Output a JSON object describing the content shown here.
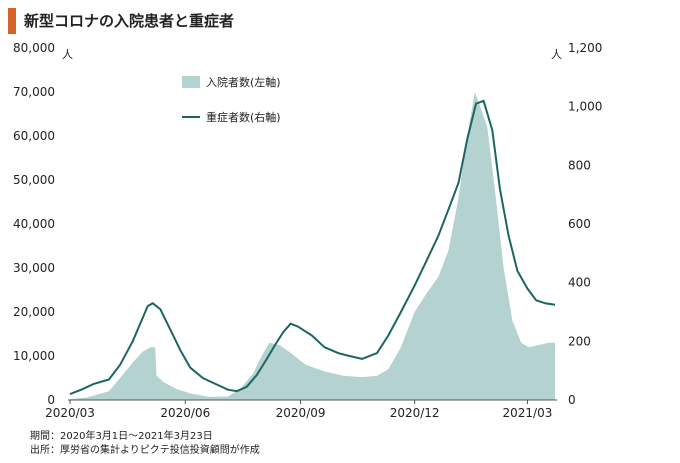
{
  "header": {
    "title": "新型コロナの入院患者と重症者"
  },
  "footer": {
    "period": "期間：2020年3月1日～2021年3月23日",
    "source": "出所：厚労省の集計よりピクテ投信投資顧問が作成"
  },
  "chart_data": {
    "type": "area",
    "title": "新型コロナの入院患者と重症者",
    "left_unit": "人",
    "right_unit": "人",
    "left_axis": {
      "ylim": [
        0,
        80000
      ],
      "ticks": [
        0,
        10000,
        20000,
        30000,
        40000,
        50000,
        60000,
        70000,
        80000
      ],
      "tick_labels": [
        "0",
        "10,000",
        "20,000",
        "30,000",
        "40,000",
        "50,000",
        "60,000",
        "70,000",
        "80,000"
      ]
    },
    "right_axis": {
      "ylim": [
        0,
        1200
      ],
      "ticks": [
        0,
        200,
        400,
        600,
        800,
        1000,
        1200
      ],
      "tick_labels": [
        "0",
        "200",
        "400",
        "600",
        "800",
        "1,000",
        "1,200"
      ]
    },
    "x_axis": {
      "range": [
        "2020-03-01",
        "2021-03-23"
      ],
      "ticks": [
        "2020-03-01",
        "2020-06-01",
        "2020-09-01",
        "2020-12-01",
        "2021-03-01"
      ],
      "tick_labels": [
        "2020/03",
        "2020/06",
        "2020/09",
        "2020/12",
        "2021/03"
      ]
    },
    "legend_position": "top-center",
    "grid": false,
    "series": [
      {
        "name": "入院者数(左軸)",
        "kind": "area",
        "axis": "left",
        "color": "#b3d2d0",
        "points": [
          [
            "2020-03-01",
            200
          ],
          [
            "2020-03-15",
            600
          ],
          [
            "2020-04-01",
            2000
          ],
          [
            "2020-04-10",
            5000
          ],
          [
            "2020-04-20",
            8500
          ],
          [
            "2020-04-28",
            11000
          ],
          [
            "2020-05-04",
            12000
          ],
          [
            "2020-05-08",
            12000
          ],
          [
            "2020-05-09",
            5500
          ],
          [
            "2020-05-15",
            4000
          ],
          [
            "2020-05-25",
            2500
          ],
          [
            "2020-06-05",
            1500
          ],
          [
            "2020-06-20",
            700
          ],
          [
            "2020-07-05",
            800
          ],
          [
            "2020-07-15",
            2500
          ],
          [
            "2020-07-25",
            6000
          ],
          [
            "2020-08-01",
            10000
          ],
          [
            "2020-08-07",
            13000
          ],
          [
            "2020-08-15",
            12500
          ],
          [
            "2020-08-25",
            10500
          ],
          [
            "2020-09-05",
            8000
          ],
          [
            "2020-09-20",
            6500
          ],
          [
            "2020-10-05",
            5500
          ],
          [
            "2020-10-20",
            5200
          ],
          [
            "2020-11-01",
            5500
          ],
          [
            "2020-11-10",
            7000
          ],
          [
            "2020-11-20",
            12000
          ],
          [
            "2020-12-01",
            20000
          ],
          [
            "2020-12-10",
            24000
          ],
          [
            "2020-12-20",
            28000
          ],
          [
            "2020-12-28",
            34000
          ],
          [
            "2021-01-05",
            46000
          ],
          [
            "2021-01-12",
            60000
          ],
          [
            "2021-01-18",
            70000
          ],
          [
            "2021-01-22",
            67000
          ],
          [
            "2021-01-28",
            62000
          ],
          [
            "2021-02-03",
            48000
          ],
          [
            "2021-02-10",
            30000
          ],
          [
            "2021-02-17",
            18000
          ],
          [
            "2021-02-24",
            13000
          ],
          [
            "2021-03-02",
            12000
          ],
          [
            "2021-03-10",
            12500
          ],
          [
            "2021-03-18",
            13000
          ],
          [
            "2021-03-23",
            13000
          ]
        ]
      },
      {
        "name": "重症者数(右軸)",
        "kind": "line",
        "axis": "right",
        "color": "#1b6663",
        "points": [
          [
            "2020-03-01",
            20
          ],
          [
            "2020-03-10",
            35
          ],
          [
            "2020-03-20",
            55
          ],
          [
            "2020-04-01",
            70
          ],
          [
            "2020-04-10",
            120
          ],
          [
            "2020-04-20",
            200
          ],
          [
            "2020-04-28",
            280
          ],
          [
            "2020-05-02",
            320
          ],
          [
            "2020-05-06",
            330
          ],
          [
            "2020-05-12",
            310
          ],
          [
            "2020-05-20",
            240
          ],
          [
            "2020-05-28",
            170
          ],
          [
            "2020-06-05",
            110
          ],
          [
            "2020-06-15",
            75
          ],
          [
            "2020-06-25",
            55
          ],
          [
            "2020-07-05",
            35
          ],
          [
            "2020-07-12",
            30
          ],
          [
            "2020-07-20",
            45
          ],
          [
            "2020-07-28",
            85
          ],
          [
            "2020-08-05",
            140
          ],
          [
            "2020-08-12",
            190
          ],
          [
            "2020-08-18",
            230
          ],
          [
            "2020-08-24",
            260
          ],
          [
            "2020-08-30",
            250
          ],
          [
            "2020-09-10",
            220
          ],
          [
            "2020-09-20",
            180
          ],
          [
            "2020-10-01",
            160
          ],
          [
            "2020-10-10",
            150
          ],
          [
            "2020-10-20",
            140
          ],
          [
            "2020-11-01",
            160
          ],
          [
            "2020-11-10",
            220
          ],
          [
            "2020-11-20",
            300
          ],
          [
            "2020-12-01",
            390
          ],
          [
            "2020-12-10",
            470
          ],
          [
            "2020-12-20",
            560
          ],
          [
            "2020-12-28",
            650
          ],
          [
            "2021-01-05",
            740
          ],
          [
            "2021-01-12",
            890
          ],
          [
            "2021-01-19",
            1010
          ],
          [
            "2021-01-25",
            1020
          ],
          [
            "2021-02-01",
            920
          ],
          [
            "2021-02-07",
            720
          ],
          [
            "2021-02-14",
            560
          ],
          [
            "2021-02-21",
            440
          ],
          [
            "2021-03-01",
            380
          ],
          [
            "2021-03-08",
            340
          ],
          [
            "2021-03-15",
            330
          ],
          [
            "2021-03-23",
            325
          ]
        ]
      }
    ]
  }
}
